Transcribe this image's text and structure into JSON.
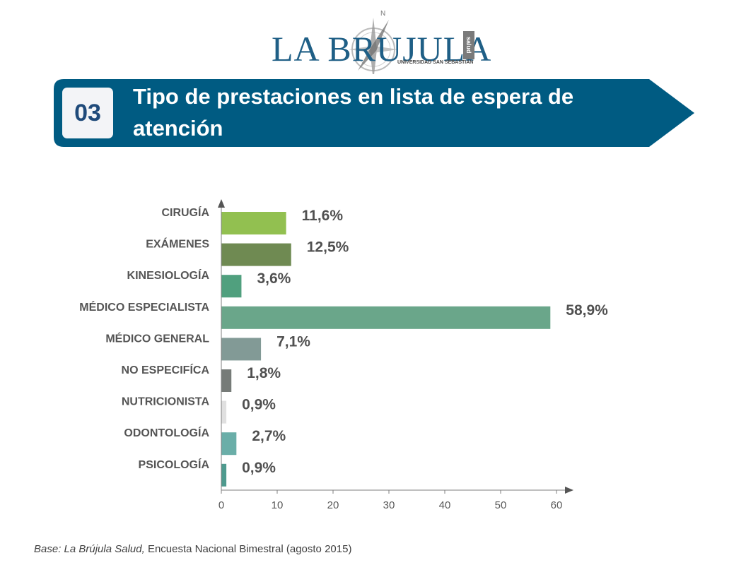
{
  "logo": {
    "text": "LA BRUJULA",
    "salud": "salud",
    "subtitle": "UNIVERSIDAD SAN SEBASTIÁN",
    "compass_north": "N"
  },
  "banner": {
    "number": "03",
    "title": "Tipo de prestaciones en  lista de espera de atención",
    "color": "#005b82"
  },
  "chart_data": {
    "type": "bar",
    "orientation": "horizontal",
    "categories": [
      "CIRUGÍA",
      "EXÁMENES",
      "KINESIOLOGÍA",
      "MÉDICO ESPECIALISTA",
      "MÉDICO GENERAL",
      "NO ESPECIFÍCA",
      "NUTRICIONISTA",
      "ODONTOLOGÍA",
      "PSICOLOGÍA"
    ],
    "values": [
      11.6,
      12.5,
      3.6,
      58.9,
      7.1,
      1.8,
      0.9,
      2.7,
      0.9
    ],
    "labels": [
      "11,6%",
      "12,5%",
      "3,6%",
      "58,9%",
      "7,1%",
      "1,8%",
      "0,9%",
      "2,7%",
      "0,9%"
    ],
    "colors": [
      "#92c050",
      "#6f8a52",
      "#50a07e",
      "#6aa68a",
      "#829a96",
      "#767b78",
      "#e0e0e0",
      "#6aaea8",
      "#4e9a8e"
    ],
    "xlim": [
      0,
      60
    ],
    "xticks": [
      "0",
      "10",
      "20",
      "30",
      "40",
      "50",
      "60"
    ],
    "grid": false
  },
  "footnote": {
    "italic": "Base: La Brújula Salud,",
    "rest": " Encuesta Nacional Bimestral (agosto 2015)"
  }
}
